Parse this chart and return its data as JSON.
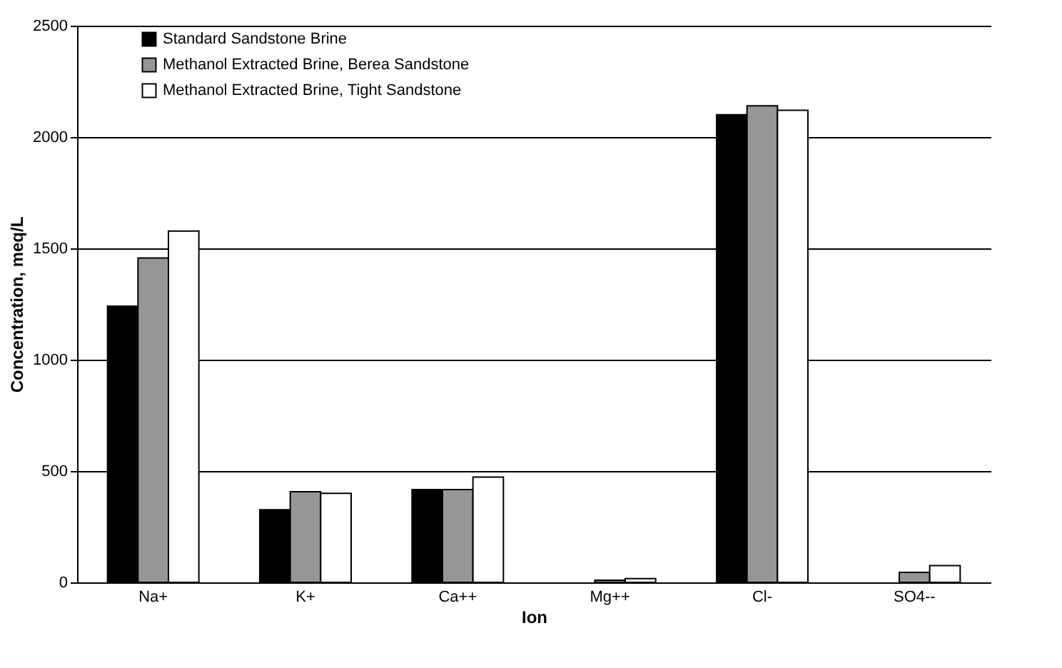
{
  "chart_data": {
    "type": "bar",
    "xlabel": "Ion",
    "ylabel": "Concentration, meq/L",
    "categories": [
      "Na+",
      "K+",
      "Ca++",
      "Mg++",
      "Cl-",
      "SO4--"
    ],
    "series": [
      {
        "name": "Standard Sandstone Brine",
        "color": "#000000",
        "values": [
          1240,
          326,
          417,
          null,
          2100,
          null
        ]
      },
      {
        "name": "Methanol Extracted Brine, Berea Sandstone",
        "color": "#969696",
        "values": [
          1457,
          407,
          417,
          10,
          2140,
          45
        ]
      },
      {
        "name": "Methanol Extracted Brine, Tight Sandstone",
        "color": "#ffffff",
        "values": [
          1578,
          400,
          473,
          17,
          2120,
          75
        ]
      }
    ],
    "ylim": [
      0,
      2500
    ],
    "yticks": [
      0,
      500,
      1000,
      1500,
      2000,
      2500
    ],
    "grid": "y",
    "legend": "top left"
  }
}
